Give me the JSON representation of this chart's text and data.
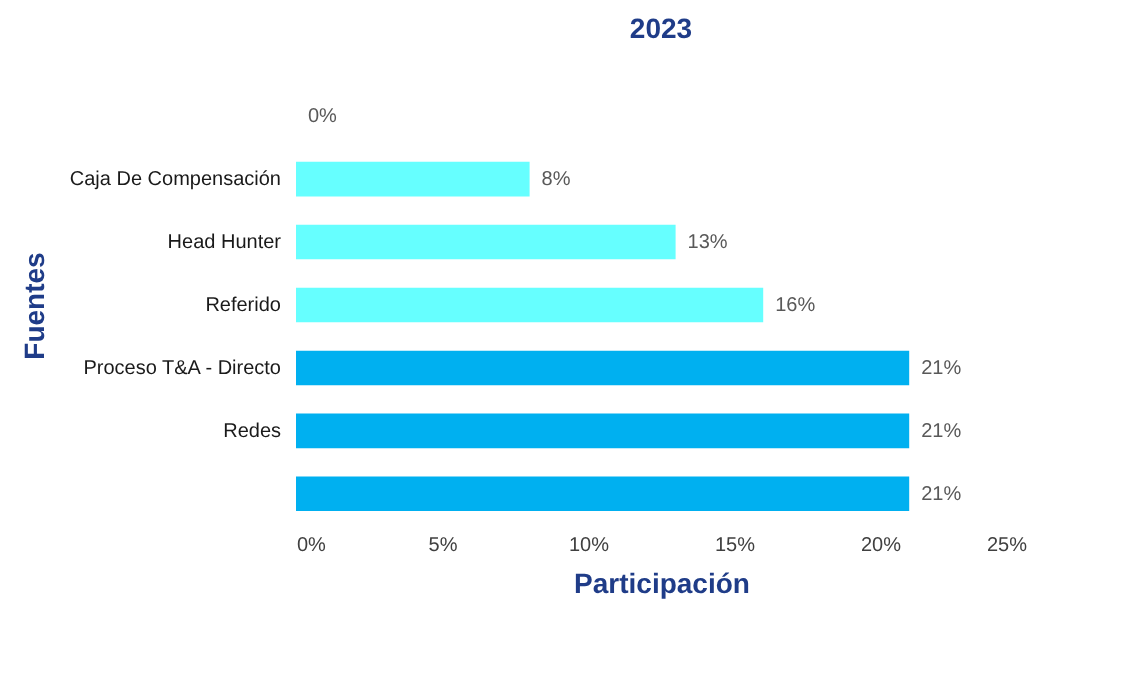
{
  "chart_data": {
    "type": "bar",
    "orientation": "horizontal",
    "title": "2023",
    "xlabel": "Participación",
    "ylabel": "Fuentes",
    "categories": [
      null,
      "Caja De Compensación",
      "Head Hunter",
      "Referido",
      "Proceso T&A - Directo",
      "Redes",
      null
    ],
    "values": [
      0,
      8,
      13,
      16,
      21,
      21,
      21
    ],
    "colors": [
      "#5ce6e6",
      "#66ffff",
      "#66ffff",
      "#66ffff",
      "#00b0f0",
      "#00b0f0",
      "#00b0f0"
    ],
    "value_labels": [
      "0%",
      "8%",
      "13%",
      "16%",
      "21%",
      "21%",
      "21%"
    ],
    "xlim": [
      0,
      25
    ],
    "xticks": [
      {
        "value": 0,
        "label": "0%"
      },
      {
        "value": 5,
        "label": "5%"
      },
      {
        "value": 10,
        "label": "10%"
      },
      {
        "value": 15,
        "label": "15%"
      },
      {
        "value": 20,
        "label": "20%"
      },
      {
        "value": 25,
        "label": "25%"
      }
    ],
    "grid": false
  }
}
